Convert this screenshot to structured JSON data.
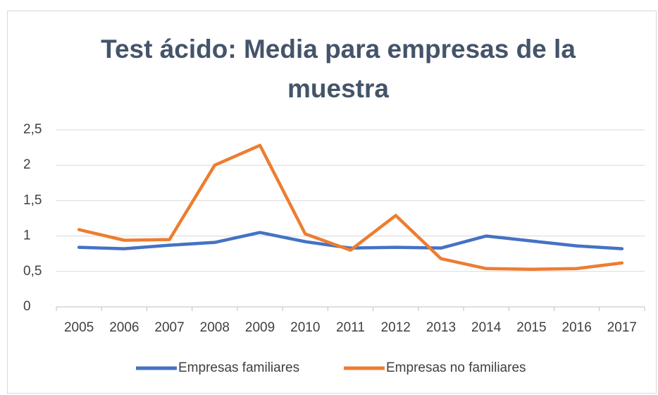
{
  "chart_data": {
    "type": "line",
    "title": "Test ácido: Media para empresas de la muestra",
    "categories": [
      "2005",
      "2006",
      "2007",
      "2008",
      "2009",
      "2010",
      "2011",
      "2012",
      "2013",
      "2014",
      "2015",
      "2016",
      "2017"
    ],
    "series": [
      {
        "name": "Empresas familiares",
        "color": "#4472c4",
        "values": [
          0.84,
          0.82,
          0.87,
          0.91,
          1.05,
          0.92,
          0.83,
          0.84,
          0.83,
          1.0,
          0.93,
          0.86,
          0.82
        ]
      },
      {
        "name": "Empresas no familiares",
        "color": "#ed7d31",
        "values": [
          1.09,
          0.94,
          0.95,
          2.0,
          2.28,
          1.03,
          0.8,
          1.29,
          0.68,
          0.54,
          0.53,
          0.54,
          0.62
        ]
      }
    ],
    "ylim": [
      0,
      2.5
    ],
    "yticks": [
      0,
      {
        "value": 0.5,
        "label": "0,5"
      },
      1,
      {
        "value": 1.5,
        "label": "1,5"
      },
      2,
      {
        "value": 2.5,
        "label": "2,5"
      }
    ],
    "grid": true,
    "legend": "bottom"
  }
}
